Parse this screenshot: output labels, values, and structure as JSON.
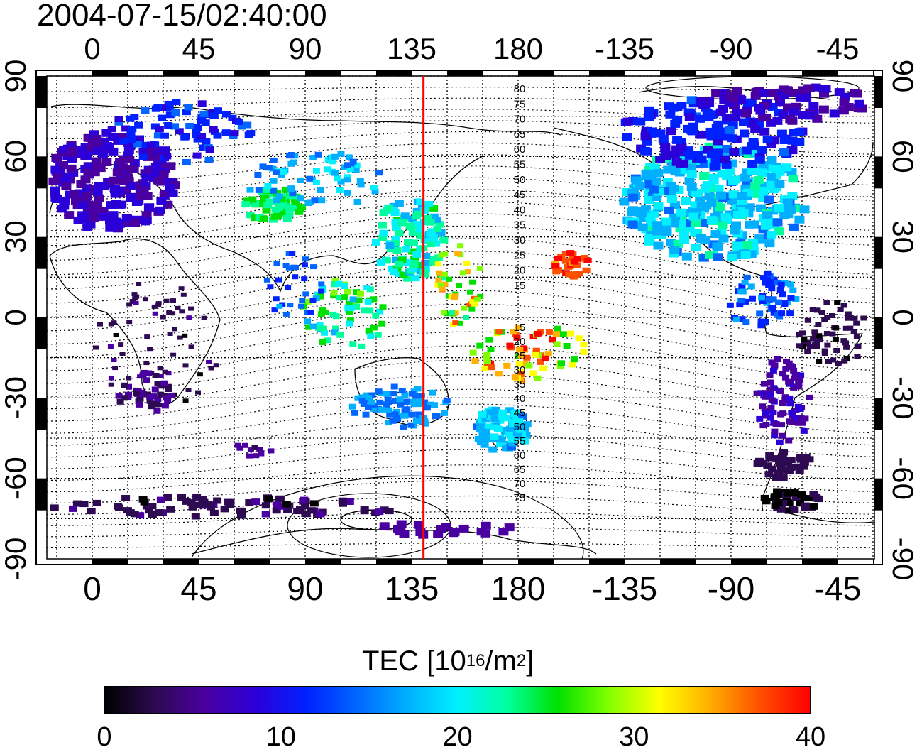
{
  "title": "2004-07-15/02:40:00",
  "map": {
    "lon_ticks": [
      "0",
      "45",
      "90",
      "135",
      "180",
      "-135",
      "-90",
      "-45"
    ],
    "lat_ticks": [
      "90",
      "60",
      "30",
      "0",
      "-30",
      "-60",
      "-90"
    ],
    "marker_meridian_lon": 140,
    "marker_color": "#ff0000",
    "contour_labels_north": [
      "80",
      "75",
      "70",
      "65",
      "60",
      "55",
      "50",
      "45",
      "40",
      "35",
      "30",
      "25",
      "20",
      "15"
    ],
    "contour_labels_south": [
      "15",
      "20",
      "25",
      "30",
      "35",
      "40",
      "45",
      "50",
      "55",
      "60",
      "65",
      "70",
      "75"
    ]
  },
  "colorbar": {
    "label_main": "TEC  [10",
    "label_exp1": "16",
    "label_mid": "/m",
    "label_exp2": "2",
    "label_end": "]",
    "ticks": [
      "0",
      "10",
      "20",
      "30",
      "40"
    ],
    "min": 0,
    "max": 40,
    "colors": [
      "#000000",
      "#2d0a52",
      "#4a00a0",
      "#2b00d8",
      "#0020ff",
      "#0066ff",
      "#00b0ff",
      "#00f0ff",
      "#00ff9c",
      "#00e000",
      "#80ff00",
      "#ffff00",
      "#ffb000",
      "#ff5000",
      "#ff0000"
    ]
  }
}
